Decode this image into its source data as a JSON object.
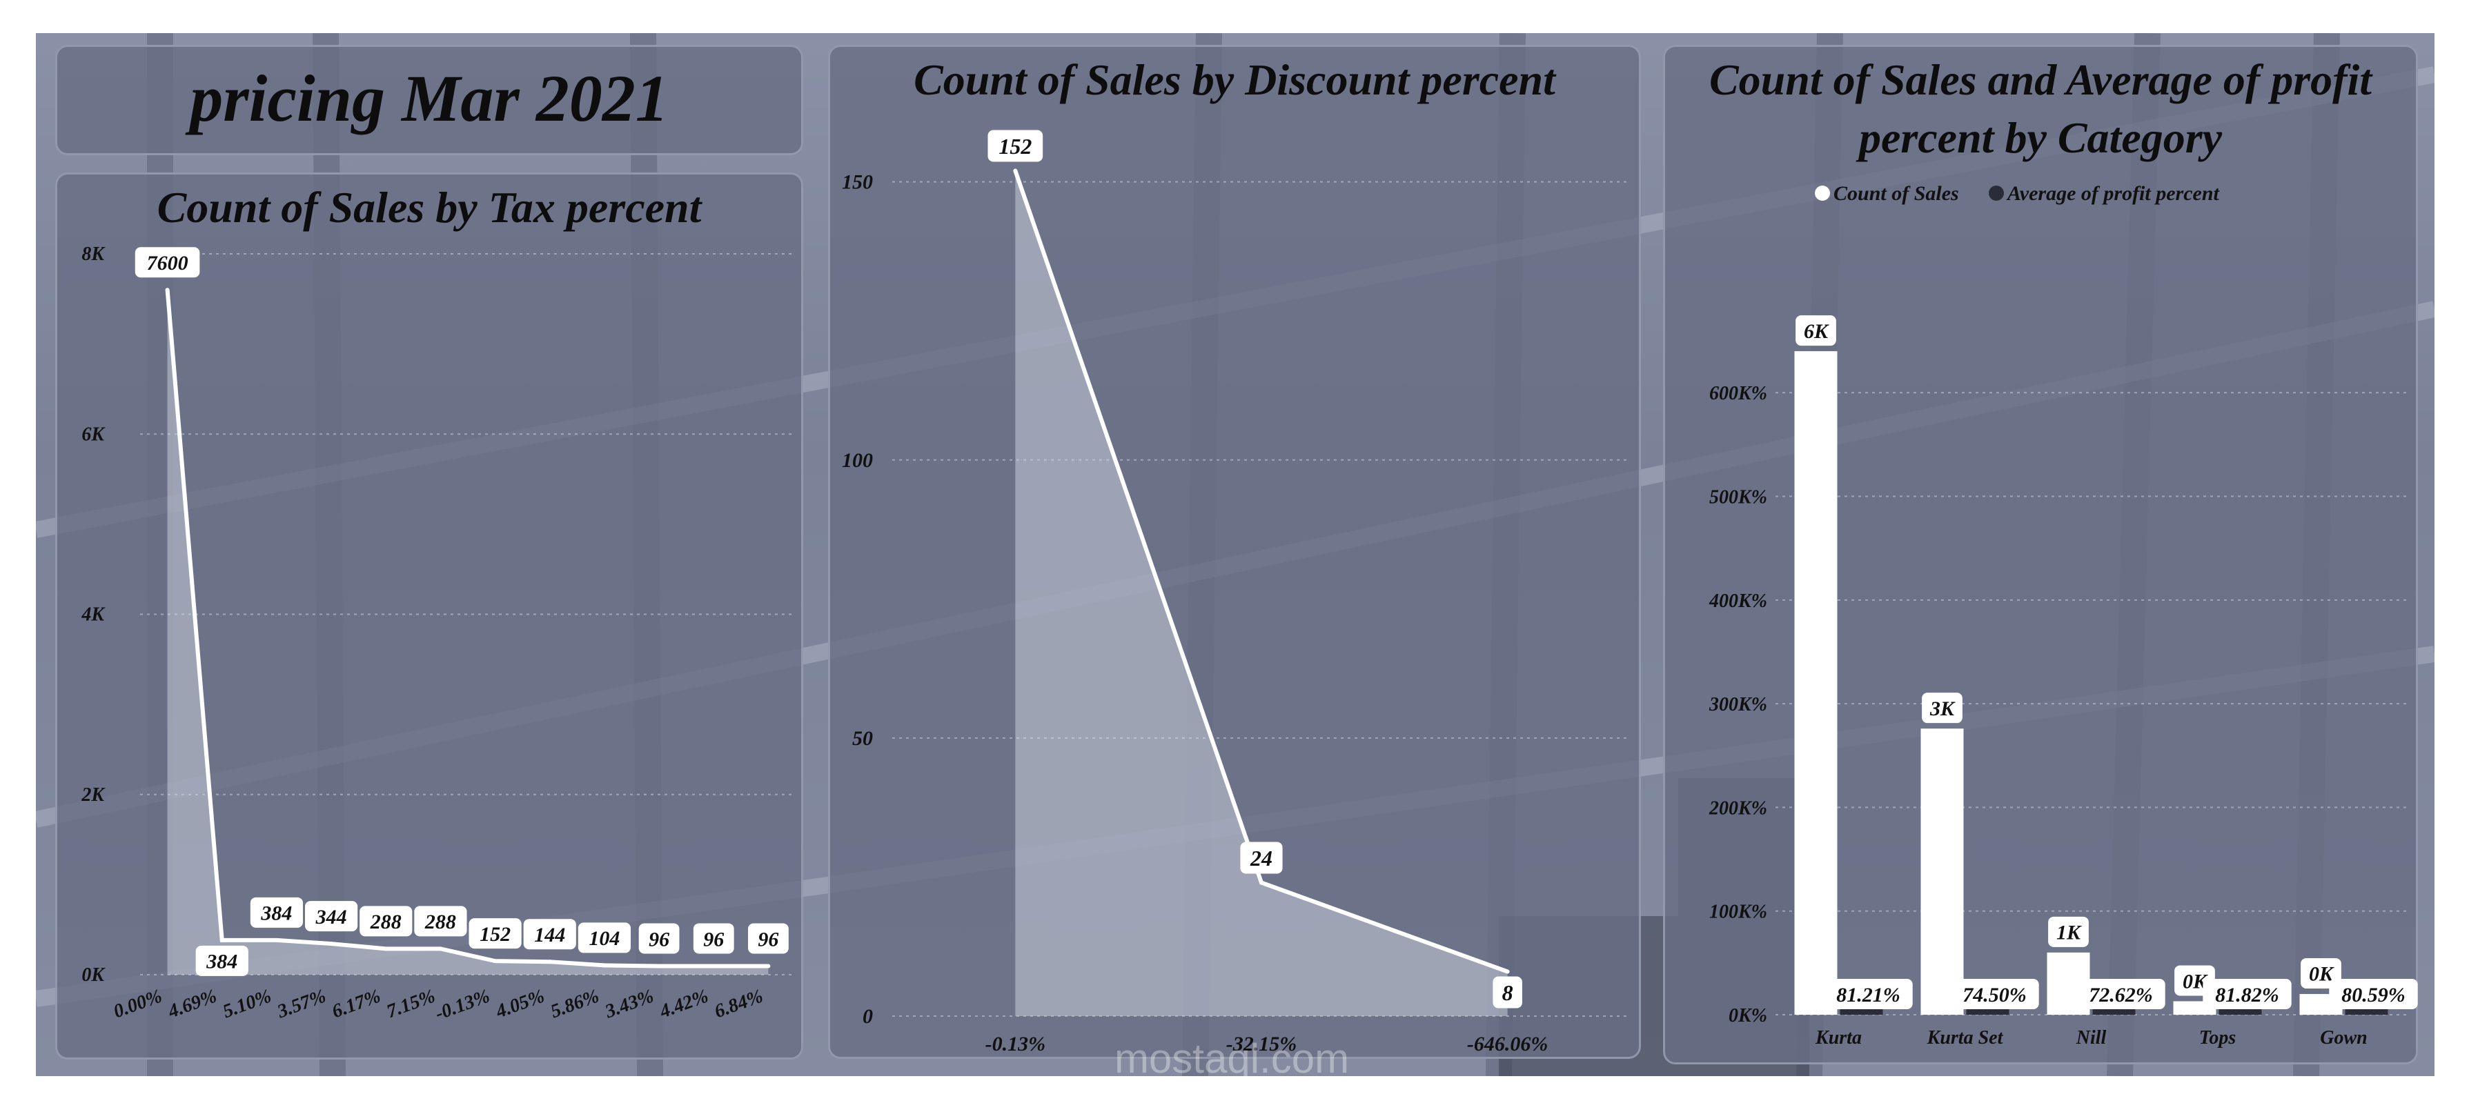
{
  "header": {
    "title": "pricing Mar 2021"
  },
  "watermark": {
    "text": "mostaql.com"
  },
  "colors": {
    "panel": "#686e84",
    "white": "#ffffff",
    "text": "#0d0d0d",
    "dark": "#2a2d38"
  },
  "chart_data": [
    {
      "type": "area",
      "title": "Count of Sales by Tax percent",
      "categories": [
        "0.00%",
        "4.69%",
        "5.10%",
        "3.57%",
        "6.17%",
        "7.15%",
        "-0.13%",
        "4.05%",
        "5.86%",
        "3.43%",
        "4.42%",
        "6.84%"
      ],
      "values": [
        7600,
        384,
        384,
        344,
        288,
        288,
        152,
        144,
        104,
        96,
        96,
        96
      ],
      "y_ticks": [
        "0K",
        "2K",
        "4K",
        "6K",
        "8K"
      ],
      "ylim": [
        0,
        8000
      ],
      "grid": true
    },
    {
      "type": "area",
      "title": "Count of Sales by Discount percent",
      "categories": [
        "-0.13%",
        "-32.15%",
        "-646.06%"
      ],
      "values": [
        152,
        24,
        8
      ],
      "y_ticks": [
        "0",
        "50",
        "100",
        "150"
      ],
      "ylim": [
        0,
        160
      ],
      "grid": true
    },
    {
      "type": "bar",
      "title": "Count of Sales and Average of profit percent by Category",
      "categories": [
        "Kurta",
        "Kurta Set",
        "Nill",
        "Tops",
        "Gown"
      ],
      "series": [
        {
          "name": "Count of Sales",
          "values": [
            6.4,
            2.76,
            0.6,
            0.13,
            0.2
          ],
          "labels": [
            "6K",
            "3K",
            "1K",
            "0K",
            "0K"
          ],
          "color": "#ffffff"
        },
        {
          "name": "Average of profit percent",
          "values": [
            81.21,
            74.5,
            72.62,
            81.82,
            80.59
          ],
          "labels": [
            "81.21%",
            "74.50%",
            "72.62%",
            "81.82%",
            "80.59%"
          ],
          "color": "#2a2d38"
        }
      ],
      "y_ticks": [
        "0K%",
        "100K%",
        "200K%",
        "300K%",
        "400K%",
        "500K%",
        "600K%"
      ],
      "legend_position": "top",
      "grid": true
    }
  ]
}
